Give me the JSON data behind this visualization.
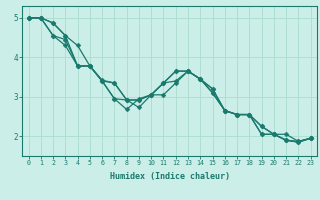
{
  "title": "",
  "xlabel": "Humidex (Indice chaleur)",
  "ylabel": "",
  "bg_color": "#cceee8",
  "line_color": "#1a7a6e",
  "grid_color": "#aaddcc",
  "xlim": [
    -0.5,
    23.5
  ],
  "ylim": [
    1.5,
    5.3
  ],
  "xticks": [
    0,
    1,
    2,
    3,
    4,
    5,
    6,
    7,
    8,
    9,
    10,
    11,
    12,
    13,
    14,
    15,
    16,
    17,
    18,
    19,
    20,
    21,
    22,
    23
  ],
  "yticks": [
    2,
    3,
    4,
    5
  ],
  "line1_y": [
    5.0,
    5.0,
    4.87,
    4.55,
    4.3,
    3.78,
    3.4,
    2.95,
    2.92,
    2.73,
    3.05,
    3.35,
    3.65,
    3.65,
    3.45,
    3.1,
    2.65,
    2.55,
    2.55,
    2.05,
    2.05,
    1.9,
    1.85,
    1.95
  ],
  "line2_y": [
    5.0,
    5.0,
    4.55,
    4.45,
    3.78,
    3.78,
    3.42,
    3.35,
    2.92,
    2.92,
    3.05,
    3.35,
    3.4,
    3.65,
    3.45,
    3.2,
    2.65,
    2.55,
    2.55,
    2.25,
    2.05,
    2.05,
    1.87,
    1.95
  ],
  "line3_y": [
    5.0,
    5.0,
    4.87,
    4.55,
    3.78,
    3.78,
    3.4,
    3.35,
    2.92,
    2.92,
    3.05,
    3.35,
    3.65,
    3.65,
    3.45,
    3.1,
    2.65,
    2.55,
    2.55,
    2.05,
    2.05,
    1.9,
    1.87,
    1.95
  ],
  "line4_y": [
    5.0,
    5.0,
    4.55,
    4.3,
    3.78,
    3.78,
    3.4,
    2.95,
    2.68,
    2.95,
    3.05,
    3.05,
    3.35,
    3.65,
    3.45,
    3.2,
    2.65,
    2.55,
    2.55,
    2.25,
    2.05,
    1.9,
    1.85,
    1.95
  ]
}
